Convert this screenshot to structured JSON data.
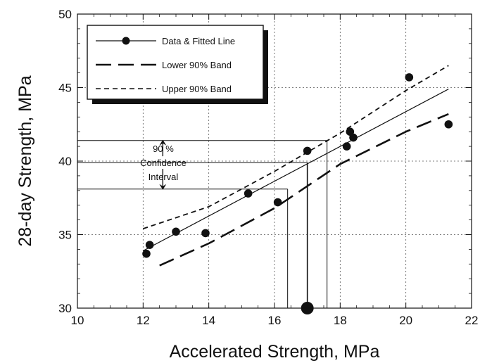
{
  "chart_data": {
    "type": "scatter",
    "xlabel": "Accelerated Strength, MPa",
    "ylabel": "28-day Strength, MPa",
    "xlim": [
      10,
      22
    ],
    "ylim": [
      30,
      50
    ],
    "xticks": [
      10,
      12,
      14,
      16,
      18,
      20,
      22
    ],
    "yticks": [
      30,
      35,
      40,
      45,
      50
    ],
    "grid": "dotted",
    "legend_position": "top-left",
    "series": [
      {
        "name": "Data & Fitted Line",
        "kind": "points_with_line",
        "x": [
          12.1,
          12.2,
          13.0,
          13.9,
          15.2,
          16.1,
          17.0,
          18.2,
          18.3,
          18.4,
          20.1,
          21.3
        ],
        "y": [
          33.7,
          34.3,
          35.2,
          35.1,
          37.8,
          37.2,
          40.7,
          41.0,
          42.0,
          41.6,
          45.7,
          42.5
        ],
        "line": [
          [
            12.0,
            33.9
          ],
          [
            21.3,
            44.9
          ]
        ]
      },
      {
        "name": "Lower 90% Band",
        "kind": "line",
        "dash": "long",
        "line": [
          [
            12.5,
            32.9
          ],
          [
            14.0,
            34.4
          ],
          [
            16.0,
            36.8
          ],
          [
            18.0,
            39.8
          ],
          [
            20.0,
            42.0
          ],
          [
            21.3,
            43.2
          ]
        ]
      },
      {
        "name": "Upper 90% Band",
        "kind": "line",
        "dash": "short",
        "line": [
          [
            12.0,
            35.4
          ],
          [
            14.0,
            36.9
          ],
          [
            16.0,
            39.3
          ],
          [
            18.0,
            41.9
          ],
          [
            20.0,
            44.8
          ],
          [
            21.3,
            46.5
          ]
        ]
      }
    ],
    "annotations": {
      "confidence_text": [
        "90 %",
        "Confidence",
        "Interval"
      ],
      "upper_bound_y": 41.4,
      "predicted_y": 39.9,
      "lower_bound_y": 38.1,
      "predicted_x": 17.0,
      "lower_x": 16.4,
      "upper_x": 17.6,
      "highlight_point": {
        "x": 17.0,
        "y": 30.0
      }
    }
  }
}
